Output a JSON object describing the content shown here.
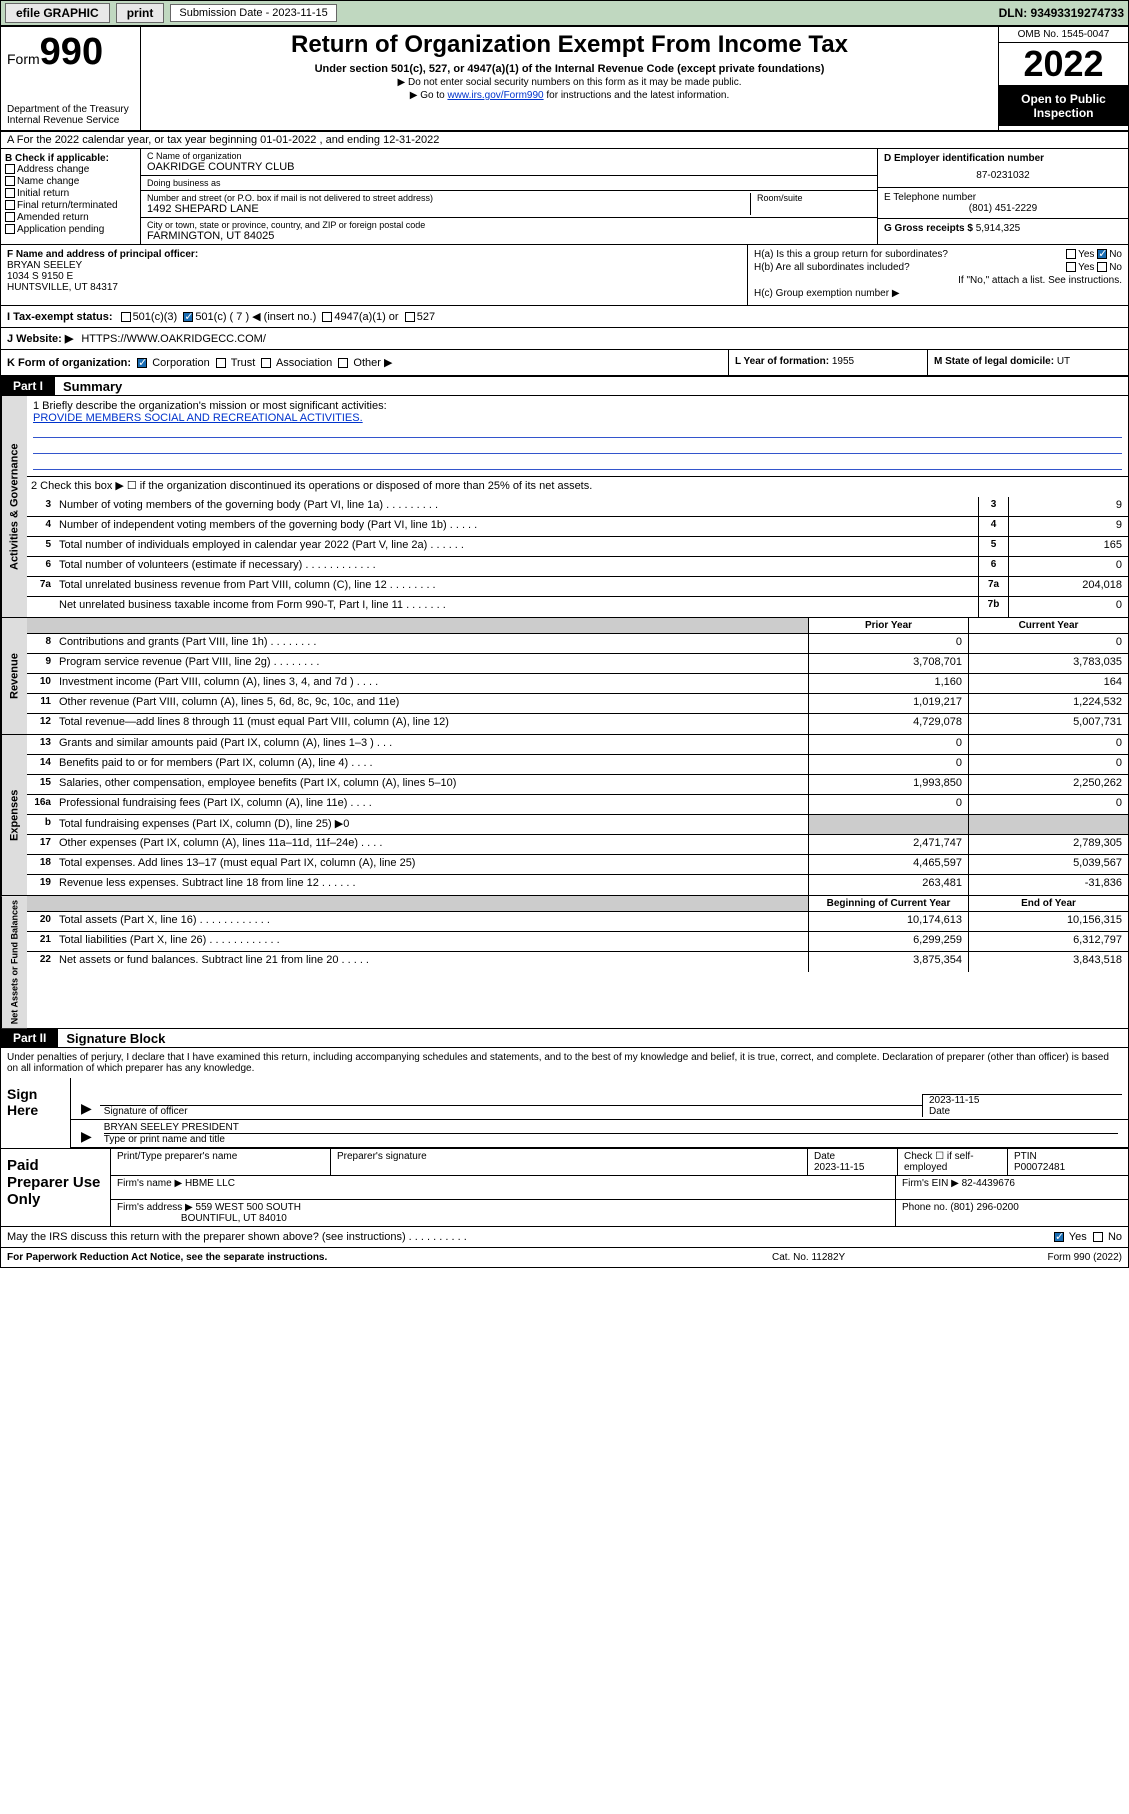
{
  "topbar": {
    "efile": "efile GRAPHIC",
    "print": "print",
    "submission_label": "Submission Date - 2023-11-15",
    "dln": "DLN: 93493319274733"
  },
  "header": {
    "form_prefix": "Form",
    "form_number": "990",
    "title": "Return of Organization Exempt From Income Tax",
    "subtitle": "Under section 501(c), 527, or 4947(a)(1) of the Internal Revenue Code (except private foundations)",
    "note1": "▶ Do not enter social security numbers on this form as it may be made public.",
    "note2_pre": "▶ Go to ",
    "note2_link": "www.irs.gov/Form990",
    "note2_post": " for instructions and the latest information.",
    "dept": "Department of the Treasury",
    "irs": "Internal Revenue Service",
    "omb": "OMB No. 1545-0047",
    "year": "2022",
    "open": "Open to Public Inspection"
  },
  "row_a": "A For the 2022 calendar year, or tax year beginning 01-01-2022    , and ending 12-31-2022",
  "col_b": {
    "title": "B Check if applicable:",
    "items": [
      "Address change",
      "Name change",
      "Initial return",
      "Final return/terminated",
      "Amended return",
      "Application pending"
    ]
  },
  "col_c": {
    "name_label": "C Name of organization",
    "name": "OAKRIDGE COUNTRY CLUB",
    "dba_label": "Doing business as",
    "dba": "",
    "addr_label": "Number and street (or P.O. box if mail is not delivered to street address)",
    "room_label": "Room/suite",
    "addr": "1492 SHEPARD LANE",
    "city_label": "City or town, state or province, country, and ZIP or foreign postal code",
    "city": "FARMINGTON, UT  84025"
  },
  "col_d": {
    "ein_label": "D Employer identification number",
    "ein": "87-0231032",
    "phone_label": "E Telephone number",
    "phone": "(801) 451-2229",
    "gross_label": "G Gross receipts $",
    "gross": "5,914,325"
  },
  "col_f": {
    "label": "F Name and address of principal officer:",
    "name": "BRYAN SEELEY",
    "addr1": "1034 S 9150 E",
    "addr2": "HUNTSVILLE, UT  84317"
  },
  "col_h": {
    "ha": "H(a)  Is this a group return for subordinates?",
    "ha_yes": "Yes",
    "ha_no": "No",
    "hb": "H(b)  Are all subordinates included?",
    "hb_yes": "Yes",
    "hb_no": "No",
    "hb_note": "If \"No,\" attach a list. See instructions.",
    "hc": "H(c)  Group exemption number ▶"
  },
  "row_i": {
    "label": "I  Tax-exempt status:",
    "opts": [
      "501(c)(3)",
      "501(c) ( 7 ) ◀ (insert no.)",
      "4947(a)(1) or",
      "527"
    ]
  },
  "row_j": {
    "label": "J  Website: ▶",
    "val": "HTTPS://WWW.OAKRIDGECC.COM/"
  },
  "row_k": {
    "label": "K Form of organization:",
    "opts": [
      "Corporation",
      "Trust",
      "Association",
      "Other ▶"
    ]
  },
  "row_l": {
    "label": "L Year of formation:",
    "val": "1955"
  },
  "row_m": {
    "label": "M State of legal domicile:",
    "val": "UT"
  },
  "part1": {
    "header": "Part I",
    "title": "Summary",
    "line1_label": "1   Briefly describe the organization's mission or most significant activities:",
    "line1_val": "PROVIDE MEMBERS SOCIAL AND RECREATIONAL ACTIVITIES.",
    "line2": "2   Check this box ▶ ☐  if the organization discontinued its operations or disposed of more than 25% of its net assets."
  },
  "sections": {
    "gov": {
      "tab": "Activities & Governance",
      "rows": [
        {
          "n": "3",
          "d": "Number of voting members of the governing body (Part VI, line 1a)   .    .    .    .    .    .    .    .    .",
          "b": "3",
          "v": "9"
        },
        {
          "n": "4",
          "d": "Number of independent voting members of the governing body (Part VI, line 1b)   .    .    .    .    .",
          "b": "4",
          "v": "9"
        },
        {
          "n": "5",
          "d": "Total number of individuals employed in calendar year 2022 (Part V, line 2a)   .    .    .    .    .    .",
          "b": "5",
          "v": "165"
        },
        {
          "n": "6",
          "d": "Total number of volunteers (estimate if necessary)   .    .    .    .    .    .    .    .    .    .    .    .",
          "b": "6",
          "v": "0"
        },
        {
          "n": "7a",
          "d": "Total unrelated business revenue from Part VIII, column (C), line 12   .    .    .    .    .    .    .    .",
          "b": "7a",
          "v": "204,018"
        },
        {
          "n": "",
          "d": "Net unrelated business taxable income from Form 990-T, Part I, line 11   .    .    .    .    .    .    .",
          "b": "7b",
          "v": "0"
        }
      ]
    },
    "rev": {
      "tab": "Revenue",
      "header_prior": "Prior Year",
      "header_current": "Current Year",
      "rows": [
        {
          "n": "8",
          "d": "Contributions and grants (Part VIII, line 1h)   .    .    .    .    .    .    .    .",
          "p": "0",
          "c": "0"
        },
        {
          "n": "9",
          "d": "Program service revenue (Part VIII, line 2g)   .    .    .    .    .    .    .    .",
          "p": "3,708,701",
          "c": "3,783,035"
        },
        {
          "n": "10",
          "d": "Investment income (Part VIII, column (A), lines 3, 4, and 7d )   .    .    .    .",
          "p": "1,160",
          "c": "164"
        },
        {
          "n": "11",
          "d": "Other revenue (Part VIII, column (A), lines 5, 6d, 8c, 9c, 10c, and 11e)",
          "p": "1,019,217",
          "c": "1,224,532"
        },
        {
          "n": "12",
          "d": "Total revenue—add lines 8 through 11 (must equal Part VIII, column (A), line 12)",
          "p": "4,729,078",
          "c": "5,007,731"
        }
      ]
    },
    "exp": {
      "tab": "Expenses",
      "rows": [
        {
          "n": "13",
          "d": "Grants and similar amounts paid (Part IX, column (A), lines 1–3 )   .    .    .",
          "p": "0",
          "c": "0"
        },
        {
          "n": "14",
          "d": "Benefits paid to or for members (Part IX, column (A), line 4)   .    .    .    .",
          "p": "0",
          "c": "0"
        },
        {
          "n": "15",
          "d": "Salaries, other compensation, employee benefits (Part IX, column (A), lines 5–10)",
          "p": "1,993,850",
          "c": "2,250,262"
        },
        {
          "n": "16a",
          "d": "Professional fundraising fees (Part IX, column (A), line 11e)   .    .    .    .",
          "p": "0",
          "c": "0"
        },
        {
          "n": "b",
          "d": "Total fundraising expenses (Part IX, column (D), line 25) ▶0",
          "p": "",
          "c": "",
          "shade": true
        },
        {
          "n": "17",
          "d": "Other expenses (Part IX, column (A), lines 11a–11d, 11f–24e)   .    .    .    .",
          "p": "2,471,747",
          "c": "2,789,305"
        },
        {
          "n": "18",
          "d": "Total expenses. Add lines 13–17 (must equal Part IX, column (A), line 25)",
          "p": "4,465,597",
          "c": "5,039,567"
        },
        {
          "n": "19",
          "d": "Revenue less expenses. Subtract line 18 from line 12   .    .    .    .    .    .",
          "p": "263,481",
          "c": "-31,836"
        }
      ]
    },
    "net": {
      "tab": "Net Assets or Fund Balances",
      "header_begin": "Beginning of Current Year",
      "header_end": "End of Year",
      "rows": [
        {
          "n": "20",
          "d": "Total assets (Part X, line 16)   .    .    .    .    .    .    .    .    .    .    .    .",
          "p": "10,174,613",
          "c": "10,156,315"
        },
        {
          "n": "21",
          "d": "Total liabilities (Part X, line 26)   .    .    .    .    .    .    .    .    .    .    .    .",
          "p": "6,299,259",
          "c": "6,312,797"
        },
        {
          "n": "22",
          "d": "Net assets or fund balances. Subtract line 21 from line 20   .    .    .    .    .",
          "p": "3,875,354",
          "c": "3,843,518"
        }
      ]
    }
  },
  "part2": {
    "header": "Part II",
    "title": "Signature Block",
    "decl": "Under penalties of perjury, I declare that I have examined this return, including accompanying schedules and statements, and to the best of my knowledge and belief, it is true, correct, and complete. Declaration of preparer (other than officer) is based on all information of which preparer has any knowledge."
  },
  "sign": {
    "here": "Sign Here",
    "sig_label": "Signature of officer",
    "date_label": "Date",
    "date": "2023-11-15",
    "name": "BRYAN SEELEY PRESIDENT",
    "name_label": "Type or print name and title"
  },
  "prep": {
    "title": "Paid Preparer Use Only",
    "h1": "Print/Type preparer's name",
    "h2": "Preparer's signature",
    "h3": "Date",
    "h3v": "2023-11-15",
    "h4": "Check ☐ if self-employed",
    "h5": "PTIN",
    "h5v": "P00072481",
    "firm_label": "Firm's name    ▶",
    "firm": "HBME LLC",
    "ein_label": "Firm's EIN ▶",
    "ein": "82-4439676",
    "addr_label": "Firm's address ▶",
    "addr1": "559 WEST 500 SOUTH",
    "addr2": "BOUNTIFUL, UT  84010",
    "phone_label": "Phone no.",
    "phone": "(801) 296-0200"
  },
  "discuss": {
    "q": "May the IRS discuss this return with the preparer shown above? (see instructions)   .    .    .    .    .    .    .    .    .    .",
    "yes": "Yes",
    "no": "No"
  },
  "footer": {
    "l": "For Paperwork Reduction Act Notice, see the separate instructions.",
    "c": "Cat. No. 11282Y",
    "r": "Form 990 (2022)"
  }
}
